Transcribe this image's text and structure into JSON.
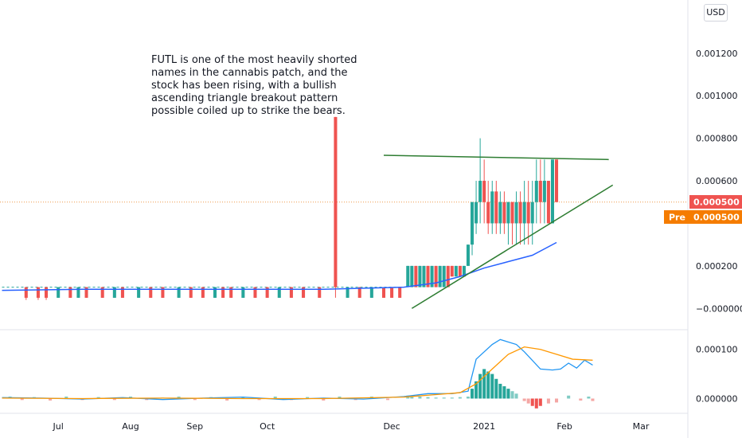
{
  "currency_label": "USD",
  "annotation": [
    "FUTL is one of the most heavily shorted",
    "names in the cannabis patch, and the",
    "stock has been rising, with a bullish",
    "ascending triangle breakout pattern",
    "possible coiled up to strike the bears."
  ],
  "price_tags": {
    "last": "0.000500",
    "pre_label": "Pre",
    "pre": "0.000500"
  },
  "colors": {
    "up": "#26a69a",
    "down": "#ef5350",
    "ma_blue": "#2962ff",
    "trend_green": "#2e7d32",
    "macd_line": "#2196f3",
    "signal_line": "#ff9800",
    "pre_tag": "#f57c00"
  },
  "chart_data": [
    {
      "type": "candlestick",
      "y_tick_labels": [
        "0.001200",
        "0.001000",
        "0.000800",
        "0.000600",
        "0.000200",
        "−0.000000"
      ],
      "y_ticks": [
        0.0012,
        0.001,
        0.0008,
        0.0006,
        0.0002,
        0.0
      ],
      "ylim": [
        -0.0001,
        0.00145
      ],
      "x_tick_labels": [
        "Jul",
        "Aug",
        "Sep",
        "Oct",
        "Dec",
        "2021",
        "Feb",
        "Mar"
      ],
      "x_tick_positions": [
        14,
        32,
        48,
        66,
        97,
        120,
        140,
        159
      ],
      "n_bars": 170,
      "candles": [
        {
          "i": 6,
          "o": 0.0001,
          "c": 5e-05,
          "h": 0.0001,
          "l": 4e-05
        },
        {
          "i": 9,
          "o": 0.0001,
          "c": 5e-05,
          "h": 0.0001,
          "l": 4e-05
        },
        {
          "i": 11,
          "o": 0.0001,
          "c": 5e-05,
          "h": 0.0001,
          "l": 4e-05
        },
        {
          "i": 14,
          "o": 5e-05,
          "c": 0.0001,
          "h": 0.0001,
          "l": 5e-05
        },
        {
          "i": 17,
          "o": 0.0001,
          "c": 5e-05,
          "h": 0.0001,
          "l": 5e-05
        },
        {
          "i": 19,
          "o": 5e-05,
          "c": 0.0001,
          "h": 0.0001,
          "l": 5e-05
        },
        {
          "i": 21,
          "o": 0.0001,
          "c": 5e-05,
          "h": 0.0001,
          "l": 5e-05
        },
        {
          "i": 25,
          "o": 0.0001,
          "c": 5e-05,
          "h": 0.0001,
          "l": 5e-05
        },
        {
          "i": 28,
          "o": 5e-05,
          "c": 0.0001,
          "h": 0.0001,
          "l": 5e-05
        },
        {
          "i": 30,
          "o": 0.0001,
          "c": 5e-05,
          "h": 0.0001,
          "l": 5e-05
        },
        {
          "i": 34,
          "o": 5e-05,
          "c": 0.0001,
          "h": 0.0001,
          "l": 5e-05
        },
        {
          "i": 37,
          "o": 0.0001,
          "c": 5e-05,
          "h": 0.0001,
          "l": 5e-05
        },
        {
          "i": 40,
          "o": 0.0001,
          "c": 5e-05,
          "h": 0.0001,
          "l": 5e-05
        },
        {
          "i": 44,
          "o": 5e-05,
          "c": 0.0001,
          "h": 0.0001,
          "l": 5e-05
        },
        {
          "i": 47,
          "o": 0.0001,
          "c": 5e-05,
          "h": 0.0001,
          "l": 5e-05
        },
        {
          "i": 50,
          "o": 0.0001,
          "c": 5e-05,
          "h": 0.0001,
          "l": 5e-05
        },
        {
          "i": 53,
          "o": 5e-05,
          "c": 0.0001,
          "h": 0.0001,
          "l": 5e-05
        },
        {
          "i": 55,
          "o": 0.0001,
          "c": 5e-05,
          "h": 0.0001,
          "l": 5e-05
        },
        {
          "i": 57,
          "o": 0.0001,
          "c": 5e-05,
          "h": 0.0001,
          "l": 5e-05
        },
        {
          "i": 60,
          "o": 5e-05,
          "c": 0.0001,
          "h": 0.0001,
          "l": 5e-05
        },
        {
          "i": 63,
          "o": 0.0001,
          "c": 5e-05,
          "h": 0.0001,
          "l": 5e-05
        },
        {
          "i": 66,
          "o": 0.0001,
          "c": 5e-05,
          "h": 0.0001,
          "l": 5e-05
        },
        {
          "i": 69,
          "o": 5e-05,
          "c": 0.0001,
          "h": 0.0001,
          "l": 5e-05
        },
        {
          "i": 72,
          "o": 0.0001,
          "c": 5e-05,
          "h": 0.0001,
          "l": 5e-05
        },
        {
          "i": 75,
          "o": 0.0001,
          "c": 5e-05,
          "h": 0.0001,
          "l": 5e-05
        },
        {
          "i": 79,
          "o": 0.0001,
          "c": 5e-05,
          "h": 0.0001,
          "l": 5e-05
        },
        {
          "i": 83,
          "o": 0.0009,
          "c": 0.0001,
          "h": 0.0009,
          "l": 5e-05
        },
        {
          "i": 86,
          "o": 5e-05,
          "c": 0.0001,
          "h": 0.0001,
          "l": 5e-05
        },
        {
          "i": 89,
          "o": 0.0001,
          "c": 5e-05,
          "h": 0.0001,
          "l": 5e-05
        },
        {
          "i": 92,
          "o": 5e-05,
          "c": 0.0001,
          "h": 0.0001,
          "l": 5e-05
        },
        {
          "i": 95,
          "o": 0.0001,
          "c": 5e-05,
          "h": 0.0001,
          "l": 5e-05
        },
        {
          "i": 97,
          "o": 0.0001,
          "c": 5e-05,
          "h": 0.0001,
          "l": 5e-05
        },
        {
          "i": 99,
          "o": 0.0001,
          "c": 5e-05,
          "h": 0.0001,
          "l": 5e-05
        },
        {
          "i": 101,
          "o": 0.0001,
          "c": 0.0002,
          "h": 0.0002,
          "l": 0.0001
        },
        {
          "i": 102,
          "o": 0.0001,
          "c": 0.0002,
          "h": 0.0002,
          "l": 0.0001
        },
        {
          "i": 103,
          "o": 0.0002,
          "c": 0.0001,
          "h": 0.0002,
          "l": 0.0001
        },
        {
          "i": 104,
          "o": 0.0001,
          "c": 0.0002,
          "h": 0.0002,
          "l": 0.0001
        },
        {
          "i": 105,
          "o": 0.0001,
          "c": 0.0002,
          "h": 0.0002,
          "l": 0.0001
        },
        {
          "i": 106,
          "o": 0.0002,
          "c": 0.0001,
          "h": 0.0002,
          "l": 0.0001
        },
        {
          "i": 107,
          "o": 0.0001,
          "c": 0.0002,
          "h": 0.0002,
          "l": 0.0001
        },
        {
          "i": 108,
          "o": 0.0002,
          "c": 0.0001,
          "h": 0.0002,
          "l": 0.0001
        },
        {
          "i": 109,
          "o": 0.0001,
          "c": 0.0002,
          "h": 0.0002,
          "l": 0.0001
        },
        {
          "i": 110,
          "o": 0.0001,
          "c": 0.0002,
          "h": 0.0002,
          "l": 0.0001
        },
        {
          "i": 111,
          "o": 0.0002,
          "c": 0.0001,
          "h": 0.0002,
          "l": 0.0001
        },
        {
          "i": 112,
          "o": 0.0002,
          "c": 0.00015,
          "h": 0.0002,
          "l": 0.00015
        },
        {
          "i": 113,
          "o": 0.00015,
          "c": 0.0002,
          "h": 0.0002,
          "l": 0.00015
        },
        {
          "i": 114,
          "o": 0.0002,
          "c": 0.00015,
          "h": 0.0002,
          "l": 0.00015
        },
        {
          "i": 115,
          "o": 0.00015,
          "c": 0.0002,
          "h": 0.0002,
          "l": 0.00015
        },
        {
          "i": 116,
          "o": 0.0002,
          "c": 0.0003,
          "h": 0.0003,
          "l": 0.0002
        },
        {
          "i": 117,
          "o": 0.0003,
          "c": 0.0005,
          "h": 0.0005,
          "l": 0.00025
        },
        {
          "i": 118,
          "o": 0.0004,
          "c": 0.0005,
          "h": 0.0006,
          "l": 0.00035
        },
        {
          "i": 119,
          "o": 0.0005,
          "c": 0.0006,
          "h": 0.0008,
          "l": 0.0004
        },
        {
          "i": 120,
          "o": 0.0006,
          "c": 0.0005,
          "h": 0.0007,
          "l": 0.0004
        },
        {
          "i": 121,
          "o": 0.0005,
          "c": 0.0004,
          "h": 0.0006,
          "l": 0.00035
        },
        {
          "i": 122,
          "o": 0.0004,
          "c": 0.00055,
          "h": 0.0006,
          "l": 0.00035
        },
        {
          "i": 123,
          "o": 0.00055,
          "c": 0.0004,
          "h": 0.0006,
          "l": 0.00035
        },
        {
          "i": 124,
          "o": 0.0004,
          "c": 0.0005,
          "h": 0.00055,
          "l": 0.00035
        },
        {
          "i": 125,
          "o": 0.0005,
          "c": 0.0004,
          "h": 0.00055,
          "l": 0.00035
        },
        {
          "i": 126,
          "o": 0.0004,
          "c": 0.0005,
          "h": 0.0005,
          "l": 0.0003
        },
        {
          "i": 127,
          "o": 0.0005,
          "c": 0.0004,
          "h": 0.0005,
          "l": 0.0003
        },
        {
          "i": 128,
          "o": 0.0004,
          "c": 0.0005,
          "h": 0.00055,
          "l": 0.0003
        },
        {
          "i": 129,
          "o": 0.0005,
          "c": 0.0004,
          "h": 0.00055,
          "l": 0.0003
        },
        {
          "i": 130,
          "o": 0.0004,
          "c": 0.0005,
          "h": 0.0006,
          "l": 0.0003
        },
        {
          "i": 131,
          "o": 0.0005,
          "c": 0.0004,
          "h": 0.0006,
          "l": 0.0003
        },
        {
          "i": 132,
          "o": 0.0004,
          "c": 0.0005,
          "h": 0.0006,
          "l": 0.0003
        },
        {
          "i": 133,
          "o": 0.0005,
          "c": 0.0006,
          "h": 0.0007,
          "l": 0.0004
        },
        {
          "i": 134,
          "o": 0.0006,
          "c": 0.0005,
          "h": 0.0007,
          "l": 0.0004
        },
        {
          "i": 135,
          "o": 0.0005,
          "c": 0.0006,
          "h": 0.0007,
          "l": 0.0004
        },
        {
          "i": 136,
          "o": 0.0006,
          "c": 0.0004,
          "h": 0.0006,
          "l": 0.0004
        },
        {
          "i": 137,
          "o": 0.0004,
          "c": 0.0007,
          "h": 0.0007,
          "l": 0.0004
        },
        {
          "i": 138,
          "o": 0.0007,
          "c": 0.0005,
          "h": 0.0007,
          "l": 0.0005
        }
      ],
      "moving_average": [
        {
          "i": 0,
          "v": 8.5e-05
        },
        {
          "i": 20,
          "v": 9e-05
        },
        {
          "i": 40,
          "v": 9e-05
        },
        {
          "i": 60,
          "v": 9e-05
        },
        {
          "i": 80,
          "v": 9e-05
        },
        {
          "i": 100,
          "v": 0.0001
        },
        {
          "i": 108,
          "v": 0.00012
        },
        {
          "i": 114,
          "v": 0.00015
        },
        {
          "i": 120,
          "v": 0.00019
        },
        {
          "i": 126,
          "v": 0.00022
        },
        {
          "i": 132,
          "v": 0.00025
        },
        {
          "i": 138,
          "v": 0.00031
        }
      ],
      "trendlines": [
        {
          "name": "resistance",
          "x1": 95,
          "y1": 0.00072,
          "x2": 151,
          "y2": 0.0007
        },
        {
          "name": "support",
          "x1": 102,
          "y1": 0.0,
          "x2": 152,
          "y2": 0.00058
        }
      ],
      "last_price": 0.0005
    },
    {
      "type": "macd",
      "y_tick_labels": [
        "0.000100",
        "0.000000"
      ],
      "y_ticks": [
        0.0001,
        0.0
      ],
      "ylim": [
        -3e-05,
        0.00014
      ],
      "macd": [
        {
          "i": 0,
          "v": 2e-06
        },
        {
          "i": 10,
          "v": 1e-06
        },
        {
          "i": 20,
          "v": -1e-06
        },
        {
          "i": 30,
          "v": 2e-06
        },
        {
          "i": 40,
          "v": -2e-06
        },
        {
          "i": 50,
          "v": 1e-06
        },
        {
          "i": 60,
          "v": 3e-06
        },
        {
          "i": 70,
          "v": -2e-06
        },
        {
          "i": 80,
          "v": 1e-06
        },
        {
          "i": 90,
          "v": -1e-06
        },
        {
          "i": 100,
          "v": 4e-06
        },
        {
          "i": 106,
          "v": 1e-05
        },
        {
          "i": 112,
          "v": 1e-05
        },
        {
          "i": 116,
          "v": 1.5e-05
        },
        {
          "i": 118,
          "v": 8e-05
        },
        {
          "i": 122,
          "v": 0.00011
        },
        {
          "i": 124,
          "v": 0.00012
        },
        {
          "i": 128,
          "v": 0.00011
        },
        {
          "i": 130,
          "v": 9.5e-05
        },
        {
          "i": 134,
          "v": 6e-05
        },
        {
          "i": 137,
          "v": 5.8e-05
        },
        {
          "i": 139,
          "v": 6e-05
        },
        {
          "i": 141,
          "v": 7.2e-05
        },
        {
          "i": 143,
          "v": 6.2e-05
        },
        {
          "i": 145,
          "v": 7.8e-05
        },
        {
          "i": 147,
          "v": 6.8e-05
        }
      ],
      "signal": [
        {
          "i": 0,
          "v": 1e-06
        },
        {
          "i": 20,
          "v": 0.0
        },
        {
          "i": 40,
          "v": 1e-06
        },
        {
          "i": 60,
          "v": 0.0
        },
        {
          "i": 80,
          "v": 0.0
        },
        {
          "i": 100,
          "v": 3e-06
        },
        {
          "i": 108,
          "v": 8e-06
        },
        {
          "i": 114,
          "v": 1.2e-05
        },
        {
          "i": 118,
          "v": 3e-05
        },
        {
          "i": 122,
          "v": 6e-05
        },
        {
          "i": 126,
          "v": 9e-05
        },
        {
          "i": 130,
          "v": 0.000105
        },
        {
          "i": 134,
          "v": 0.0001
        },
        {
          "i": 138,
          "v": 9e-05
        },
        {
          "i": 142,
          "v": 8e-05
        },
        {
          "i": 147,
          "v": 7.8e-05
        }
      ],
      "histogram": [
        {
          "i": 2,
          "v": 4e-06
        },
        {
          "i": 5,
          "v": -3e-06
        },
        {
          "i": 8,
          "v": 3e-06
        },
        {
          "i": 12,
          "v": -4e-06
        },
        {
          "i": 16,
          "v": 4e-06
        },
        {
          "i": 20,
          "v": -3e-06
        },
        {
          "i": 24,
          "v": 3e-06
        },
        {
          "i": 28,
          "v": -3e-06
        },
        {
          "i": 32,
          "v": 4e-06
        },
        {
          "i": 36,
          "v": -3e-06
        },
        {
          "i": 40,
          "v": 2e-06
        },
        {
          "i": 44,
          "v": 4e-06
        },
        {
          "i": 48,
          "v": -3e-06
        },
        {
          "i": 52,
          "v": 3e-06
        },
        {
          "i": 56,
          "v": -4e-06
        },
        {
          "i": 60,
          "v": 3e-06
        },
        {
          "i": 64,
          "v": -3e-06
        },
        {
          "i": 68,
          "v": 4e-06
        },
        {
          "i": 72,
          "v": -3e-06
        },
        {
          "i": 76,
          "v": 3e-06
        },
        {
          "i": 80,
          "v": -4e-06
        },
        {
          "i": 84,
          "v": 4e-06
        },
        {
          "i": 88,
          "v": -3e-06
        },
        {
          "i": 92,
          "v": 4e-06
        },
        {
          "i": 96,
          "v": -3e-06
        },
        {
          "i": 101,
          "v": 6e-06
        },
        {
          "i": 102,
          "v": 5e-06
        },
        {
          "i": 104,
          "v": 4e-06
        },
        {
          "i": 106,
          "v": 3e-06
        },
        {
          "i": 108,
          "v": 2e-06
        },
        {
          "i": 110,
          "v": 2e-06
        },
        {
          "i": 112,
          "v": 2e-06
        },
        {
          "i": 114,
          "v": 3e-06
        },
        {
          "i": 116,
          "v": 4e-06
        },
        {
          "i": 117,
          "v": 2e-05
        },
        {
          "i": 118,
          "v": 3.5e-05
        },
        {
          "i": 119,
          "v": 5e-05
        },
        {
          "i": 120,
          "v": 6e-05
        },
        {
          "i": 121,
          "v": 5.5e-05
        },
        {
          "i": 122,
          "v": 5e-05
        },
        {
          "i": 123,
          "v": 4e-05
        },
        {
          "i": 124,
          "v": 3e-05
        },
        {
          "i": 125,
          "v": 2.5e-05
        },
        {
          "i": 126,
          "v": 2e-05
        },
        {
          "i": 127,
          "v": 1.5e-05
        },
        {
          "i": 128,
          "v": 1e-05
        },
        {
          "i": 130,
          "v": -5e-06
        },
        {
          "i": 131,
          "v": -1e-05
        },
        {
          "i": 132,
          "v": -1.5e-05
        },
        {
          "i": 133,
          "v": -2e-05
        },
        {
          "i": 134,
          "v": -1.5e-05
        },
        {
          "i": 136,
          "v": -1e-05
        },
        {
          "i": 138,
          "v": -8e-06
        },
        {
          "i": 141,
          "v": 6e-06
        },
        {
          "i": 144,
          "v": -4e-06
        },
        {
          "i": 146,
          "v": 4e-06
        },
        {
          "i": 147,
          "v": -5e-06
        }
      ]
    }
  ]
}
